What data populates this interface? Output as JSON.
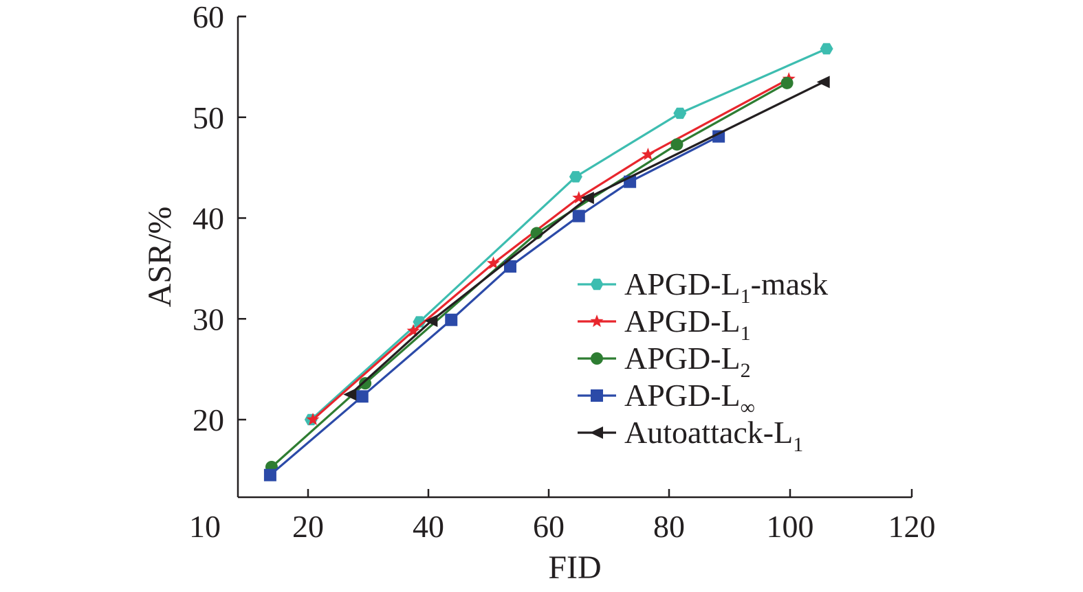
{
  "chart_data": {
    "type": "line",
    "title": "",
    "xlabel": "FID",
    "ylabel": "ASR/%",
    "xlim": [
      10,
      120
    ],
    "ylim": [
      13,
      60
    ],
    "x_ticks": [
      {
        "value": 10,
        "label": "10"
      },
      {
        "value": 20,
        "label": "20"
      },
      {
        "value": 40,
        "label": "40"
      },
      {
        "value": 60,
        "label": "60"
      },
      {
        "value": 80,
        "label": "80"
      },
      {
        "value": 100,
        "label": "100"
      },
      {
        "value": 120,
        "label": "120"
      }
    ],
    "y_ticks": [
      {
        "value": 20,
        "label": "20"
      },
      {
        "value": 30,
        "label": "30"
      },
      {
        "value": 40,
        "label": "40"
      },
      {
        "value": 50,
        "label": "50"
      },
      {
        "value": 60,
        "label": "60"
      }
    ],
    "legend_position": "lower-right",
    "series": [
      {
        "name": "APGD-L1-mask",
        "label_main": "APGD-L",
        "label_sub": "1",
        "label_suffix": "-mask",
        "color": "#3dbdb0",
        "marker": "hexagon",
        "points": [
          [
            20.5,
            20.0
          ],
          [
            38.5,
            29.7
          ],
          [
            64.5,
            44.1
          ],
          [
            81.8,
            50.4
          ],
          [
            106.0,
            56.8
          ]
        ]
      },
      {
        "name": "APGD-L1",
        "label_main": "APGD-L",
        "label_sub": "1",
        "label_suffix": "",
        "color": "#e8262d",
        "marker": "star",
        "points": [
          [
            20.8,
            20.0
          ],
          [
            37.5,
            28.8
          ],
          [
            50.8,
            35.5
          ],
          [
            65.0,
            42.0
          ],
          [
            76.5,
            46.3
          ],
          [
            99.8,
            53.8
          ]
        ]
      },
      {
        "name": "APGD-L2",
        "label_main": "APGD-L",
        "label_sub": "2",
        "label_suffix": "",
        "color": "#2e7d32",
        "marker": "circle",
        "points": [
          [
            14.8,
            15.3
          ],
          [
            29.5,
            23.6
          ],
          [
            58.0,
            38.5
          ],
          [
            81.3,
            47.3
          ],
          [
            99.5,
            53.4
          ]
        ]
      },
      {
        "name": "APGD-L∞",
        "label_main": "APGD-L",
        "label_sub": "∞",
        "label_suffix": "",
        "color": "#2b4aa8",
        "marker": "square",
        "points": [
          [
            14.6,
            14.5
          ],
          [
            29.0,
            22.3
          ],
          [
            43.8,
            29.9
          ],
          [
            53.6,
            35.2
          ],
          [
            65.0,
            40.2
          ],
          [
            73.5,
            43.6
          ],
          [
            88.2,
            48.1
          ]
        ]
      },
      {
        "name": "Autoattack-L1",
        "label_main": "Autoattack-L",
        "label_sub": "1",
        "label_suffix": "",
        "color": "#231f20",
        "marker": "triangle-left",
        "points": [
          [
            27.0,
            22.5
          ],
          [
            40.5,
            29.8
          ],
          [
            66.5,
            42.0
          ],
          [
            105.5,
            53.5
          ]
        ]
      }
    ]
  }
}
